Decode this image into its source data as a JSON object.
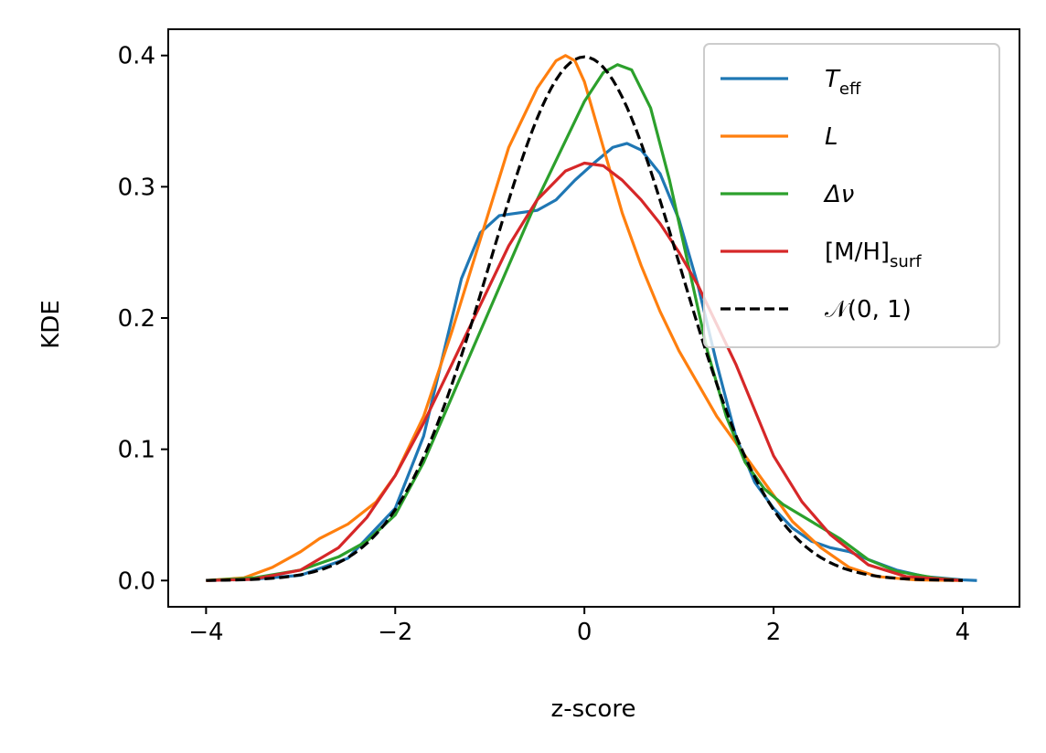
{
  "chart_data": {
    "type": "line",
    "title": "",
    "xlabel": "z-score",
    "ylabel": "KDE",
    "xlim": [
      -4.4,
      4.6
    ],
    "ylim": [
      -0.02,
      0.42
    ],
    "xticks": [
      -4,
      -2,
      0,
      2,
      4
    ],
    "xtick_labels": [
      "−4",
      "−2",
      "0",
      "2",
      "4"
    ],
    "yticks": [
      0.0,
      0.1,
      0.2,
      0.3,
      0.4
    ],
    "ytick_labels": [
      "0.0",
      "0.1",
      "0.2",
      "0.3",
      "0.4"
    ],
    "grid": false,
    "legend_position": "top-right",
    "series": [
      {
        "name": "T_eff",
        "legend_main": "T",
        "legend_sub": "eff",
        "color": "#1f77b4",
        "dash": "solid",
        "points": [
          [
            -4.0,
            0.0
          ],
          [
            -3.5,
            0.001
          ],
          [
            -3.0,
            0.004
          ],
          [
            -2.5,
            0.017
          ],
          [
            -2.0,
            0.055
          ],
          [
            -1.7,
            0.11
          ],
          [
            -1.5,
            0.17
          ],
          [
            -1.3,
            0.23
          ],
          [
            -1.1,
            0.265
          ],
          [
            -0.9,
            0.278
          ],
          [
            -0.7,
            0.28
          ],
          [
            -0.5,
            0.282
          ],
          [
            -0.3,
            0.29
          ],
          [
            -0.1,
            0.305
          ],
          [
            0.1,
            0.318
          ],
          [
            0.3,
            0.33
          ],
          [
            0.45,
            0.333
          ],
          [
            0.6,
            0.328
          ],
          [
            0.8,
            0.31
          ],
          [
            1.0,
            0.275
          ],
          [
            1.2,
            0.225
          ],
          [
            1.4,
            0.165
          ],
          [
            1.6,
            0.11
          ],
          [
            1.8,
            0.075
          ],
          [
            2.0,
            0.055
          ],
          [
            2.2,
            0.04
          ],
          [
            2.4,
            0.03
          ],
          [
            2.6,
            0.025
          ],
          [
            2.8,
            0.022
          ],
          [
            3.0,
            0.016
          ],
          [
            3.3,
            0.008
          ],
          [
            3.6,
            0.003
          ],
          [
            4.0,
            0.0005
          ],
          [
            4.15,
            0.0
          ]
        ]
      },
      {
        "name": "L",
        "legend_main": "L",
        "legend_sub": "",
        "color": "#ff7f0e",
        "dash": "solid",
        "points": [
          [
            -4.0,
            0.0
          ],
          [
            -3.6,
            0.002
          ],
          [
            -3.3,
            0.01
          ],
          [
            -3.0,
            0.022
          ],
          [
            -2.8,
            0.032
          ],
          [
            -2.5,
            0.043
          ],
          [
            -2.2,
            0.06
          ],
          [
            -2.0,
            0.08
          ],
          [
            -1.7,
            0.125
          ],
          [
            -1.4,
            0.19
          ],
          [
            -1.1,
            0.26
          ],
          [
            -0.8,
            0.33
          ],
          [
            -0.5,
            0.375
          ],
          [
            -0.3,
            0.396
          ],
          [
            -0.2,
            0.4
          ],
          [
            -0.1,
            0.396
          ],
          [
            0.0,
            0.38
          ],
          [
            0.2,
            0.33
          ],
          [
            0.4,
            0.28
          ],
          [
            0.6,
            0.24
          ],
          [
            0.8,
            0.205
          ],
          [
            1.0,
            0.175
          ],
          [
            1.2,
            0.15
          ],
          [
            1.4,
            0.125
          ],
          [
            1.6,
            0.105
          ],
          [
            1.8,
            0.085
          ],
          [
            2.0,
            0.065
          ],
          [
            2.2,
            0.045
          ],
          [
            2.5,
            0.025
          ],
          [
            2.8,
            0.01
          ],
          [
            3.1,
            0.003
          ],
          [
            3.5,
            0.0005
          ],
          [
            4.0,
            0.0
          ]
        ]
      },
      {
        "name": "Δν",
        "legend_main": "Δν",
        "legend_sub": "",
        "color": "#2ca02c",
        "dash": "solid",
        "points": [
          [
            -4.0,
            0.0
          ],
          [
            -3.5,
            0.002
          ],
          [
            -3.0,
            0.008
          ],
          [
            -2.6,
            0.018
          ],
          [
            -2.3,
            0.03
          ],
          [
            -2.0,
            0.05
          ],
          [
            -1.7,
            0.09
          ],
          [
            -1.4,
            0.14
          ],
          [
            -1.1,
            0.19
          ],
          [
            -0.8,
            0.24
          ],
          [
            -0.5,
            0.29
          ],
          [
            -0.2,
            0.335
          ],
          [
            0.0,
            0.365
          ],
          [
            0.2,
            0.387
          ],
          [
            0.35,
            0.393
          ],
          [
            0.5,
            0.389
          ],
          [
            0.7,
            0.36
          ],
          [
            0.9,
            0.305
          ],
          [
            1.1,
            0.24
          ],
          [
            1.3,
            0.175
          ],
          [
            1.5,
            0.125
          ],
          [
            1.7,
            0.09
          ],
          [
            1.9,
            0.07
          ],
          [
            2.1,
            0.058
          ],
          [
            2.4,
            0.045
          ],
          [
            2.7,
            0.032
          ],
          [
            3.0,
            0.016
          ],
          [
            3.3,
            0.007
          ],
          [
            3.7,
            0.002
          ],
          [
            4.0,
            0.0
          ]
        ]
      },
      {
        "name": "[M/H]_surf",
        "legend_main": "[M/H]",
        "legend_sub": "surf",
        "color": "#d62728",
        "dash": "solid",
        "points": [
          [
            -4.0,
            0.0
          ],
          [
            -3.5,
            0.001
          ],
          [
            -3.0,
            0.008
          ],
          [
            -2.6,
            0.025
          ],
          [
            -2.3,
            0.048
          ],
          [
            -2.0,
            0.08
          ],
          [
            -1.7,
            0.12
          ],
          [
            -1.4,
            0.165
          ],
          [
            -1.1,
            0.21
          ],
          [
            -0.8,
            0.255
          ],
          [
            -0.5,
            0.29
          ],
          [
            -0.2,
            0.312
          ],
          [
            0.0,
            0.318
          ],
          [
            0.2,
            0.316
          ],
          [
            0.4,
            0.305
          ],
          [
            0.6,
            0.29
          ],
          [
            0.8,
            0.272
          ],
          [
            1.0,
            0.25
          ],
          [
            1.2,
            0.225
          ],
          [
            1.4,
            0.195
          ],
          [
            1.6,
            0.165
          ],
          [
            1.8,
            0.13
          ],
          [
            2.0,
            0.095
          ],
          [
            2.3,
            0.06
          ],
          [
            2.6,
            0.035
          ],
          [
            3.0,
            0.012
          ],
          [
            3.4,
            0.003
          ],
          [
            3.8,
            0.001
          ],
          [
            4.0,
            0.0
          ]
        ]
      },
      {
        "name": "N(0,1)",
        "legend_main": "𝒩(0, 1)",
        "legend_sub": "",
        "color": "#000000",
        "dash": "dashed",
        "normal": true
      }
    ]
  }
}
